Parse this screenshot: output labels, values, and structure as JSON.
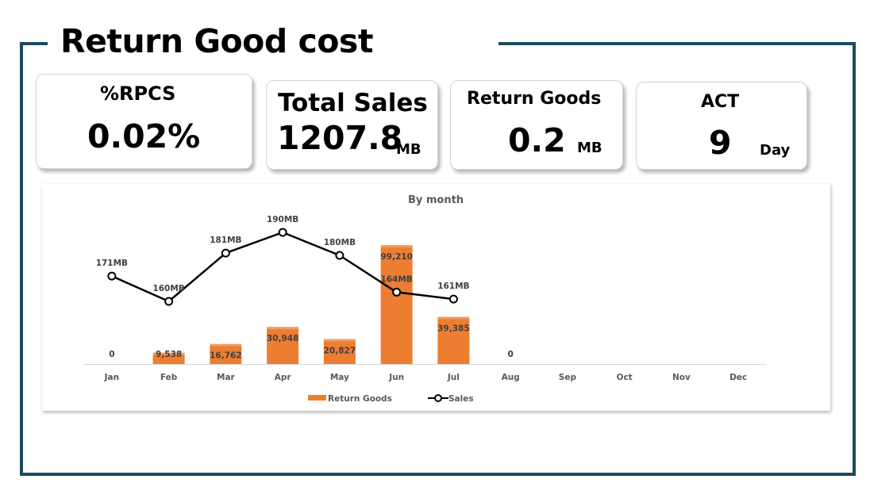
{
  "page": {
    "title": "Return Good cost"
  },
  "kpis": {
    "rpcs": {
      "label": "%RPCS",
      "value": "0.02%"
    },
    "total_sales": {
      "label": "Total Sales",
      "value": "1207.8",
      "unit": "MB"
    },
    "return_goods": {
      "label": "Return Goods",
      "value": "0.2",
      "unit": "MB"
    },
    "act": {
      "label": "ACT",
      "value": "9",
      "unit": "Day"
    }
  },
  "colors": {
    "frame": "#1b4a5c",
    "bar": "#ed7d31",
    "line": "#000000",
    "text": "#595959"
  },
  "chart_data": {
    "type": "bar",
    "title": "By month",
    "categories": [
      "Jan",
      "Feb",
      "Mar",
      "Apr",
      "May",
      "Jun",
      "Jul",
      "Aug",
      "Sep",
      "Oct",
      "Nov",
      "Dec"
    ],
    "series": [
      {
        "name": "Return Goods",
        "type": "bar",
        "values": [
          0,
          9538,
          16762,
          30948,
          20827,
          99210,
          39385,
          0,
          null,
          null,
          null,
          null
        ],
        "labels": [
          "0",
          "9,538",
          "16,762",
          "30,948",
          "20,827",
          "99,210",
          "39,385",
          "0",
          "",
          "",
          "",
          ""
        ]
      },
      {
        "name": "Sales",
        "type": "line",
        "values": [
          171,
          160,
          181,
          190,
          180,
          164,
          161,
          null,
          null,
          null,
          null,
          null
        ],
        "labels": [
          "171MB",
          "160MB",
          "181MB",
          "190MB",
          "180MB",
          "164MB",
          "161MB",
          "",
          "",
          "",
          "",
          ""
        ]
      }
    ],
    "legend": "bottom",
    "grid": false
  }
}
